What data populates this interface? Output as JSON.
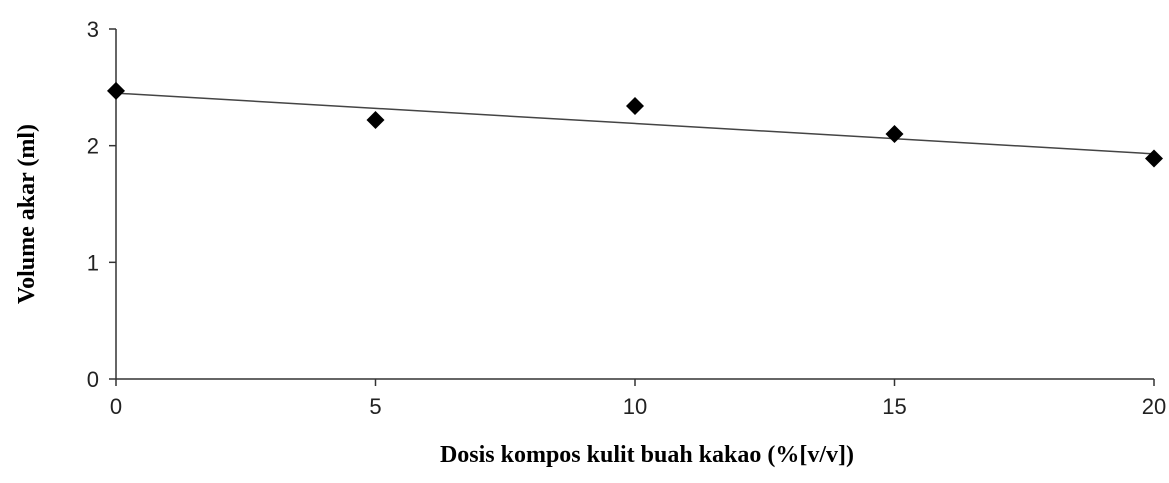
{
  "chart_data": {
    "type": "scatter",
    "title": "",
    "xlabel": "Dosis kompos kulit buah kakao (%[v/v])",
    "ylabel": "Volume akar (ml)",
    "xlim": [
      0,
      20
    ],
    "ylim": [
      0,
      3
    ],
    "xticks": [
      0,
      5,
      10,
      15,
      20
    ],
    "yticks": [
      0,
      1,
      2,
      3
    ],
    "xtick_labels": [
      "0",
      "5",
      "10",
      "15",
      "20"
    ],
    "ytick_labels": [
      "0",
      "1",
      "2",
      "3"
    ],
    "grid": false,
    "legend": "none",
    "marker": "diamond",
    "series": [
      {
        "x": [
          0,
          5,
          10,
          15,
          20
        ],
        "y": [
          2.47,
          2.22,
          2.34,
          2.1,
          1.89
        ]
      }
    ],
    "trendline": {
      "type": "linear",
      "x": [
        0,
        20
      ],
      "y": [
        2.45,
        1.93
      ]
    },
    "colors": {
      "marker": "#000000",
      "trendline": "#444444",
      "axis": "#333333"
    }
  }
}
